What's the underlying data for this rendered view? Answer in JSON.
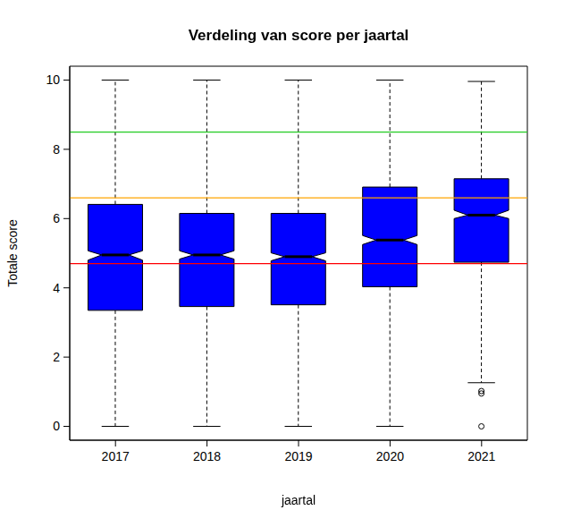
{
  "chart_data": {
    "type": "boxplot",
    "title": "Verdeling van score per jaartal",
    "x_label": "jaartal",
    "y_label": "Totale score",
    "categories": [
      "2017",
      "2018",
      "2019",
      "2020",
      "2021"
    ],
    "boxes": [
      {
        "whisker_low": 0,
        "q1": 3.35,
        "median": 4.95,
        "q3": 6.41,
        "whisker_high": 10,
        "notch_low": 4.8,
        "notch_high": 5.07,
        "outliers": []
      },
      {
        "whisker_low": 0,
        "q1": 3.46,
        "median": 4.95,
        "q3": 6.15,
        "whisker_high": 10,
        "notch_low": 4.83,
        "notch_high": 5.07,
        "outliers": []
      },
      {
        "whisker_low": 0,
        "q1": 3.51,
        "median": 4.9,
        "q3": 6.15,
        "whisker_high": 10,
        "notch_low": 4.78,
        "notch_high": 5.01,
        "outliers": []
      },
      {
        "whisker_low": 0,
        "q1": 4.03,
        "median": 5.38,
        "q3": 6.91,
        "whisker_high": 10,
        "notch_low": 5.25,
        "notch_high": 5.51,
        "outliers": []
      },
      {
        "whisker_low": 1.26,
        "q1": 4.74,
        "median": 6.1,
        "q3": 7.15,
        "whisker_high": 9.96,
        "notch_low": 6.0,
        "notch_high": 6.24,
        "outliers": [
          1.02,
          0.95,
          0
        ]
      }
    ],
    "color": "#0000ff",
    "ylim": [
      -0.4,
      10.4
    ],
    "yticks": [
      0,
      2,
      4,
      6,
      8,
      10
    ],
    "reference_lines": [
      {
        "value": 8.5,
        "color": "#22cc22"
      },
      {
        "value": 6.6,
        "color": "#ffa500"
      },
      {
        "value": 4.7,
        "color": "#ff0000"
      }
    ]
  }
}
